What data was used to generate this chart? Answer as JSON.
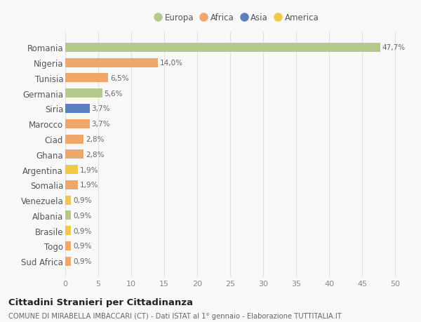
{
  "countries": [
    "Romania",
    "Nigeria",
    "Tunisia",
    "Germania",
    "Siria",
    "Marocco",
    "Ciad",
    "Ghana",
    "Argentina",
    "Somalia",
    "Venezuela",
    "Albania",
    "Brasile",
    "Togo",
    "Sud Africa"
  ],
  "values": [
    47.7,
    14.0,
    6.5,
    5.6,
    3.7,
    3.7,
    2.8,
    2.8,
    1.9,
    1.9,
    0.9,
    0.9,
    0.9,
    0.9,
    0.9
  ],
  "labels": [
    "47,7%",
    "14,0%",
    "6,5%",
    "5,6%",
    "3,7%",
    "3,7%",
    "2,8%",
    "2,8%",
    "1,9%",
    "1,9%",
    "0,9%",
    "0,9%",
    "0,9%",
    "0,9%",
    "0,9%"
  ],
  "continents": [
    "Europa",
    "Africa",
    "Africa",
    "Europa",
    "Asia",
    "Africa",
    "Africa",
    "Africa",
    "America",
    "Africa",
    "America",
    "Europa",
    "America",
    "Africa",
    "Africa"
  ],
  "continent_colors": {
    "Europa": "#b5c98e",
    "Africa": "#f0a86a",
    "Asia": "#5b7fbe",
    "America": "#f0c84a"
  },
  "legend_order": [
    "Europa",
    "Africa",
    "Asia",
    "America"
  ],
  "title": "Cittadini Stranieri per Cittadinanza",
  "subtitle": "COMUNE DI MIRABELLA IMBACCARI (CT) - Dati ISTAT al 1° gennaio - Elaborazione TUTTITALIA.IT",
  "xlim": [
    0,
    52
  ],
  "xticks": [
    0,
    5,
    10,
    15,
    20,
    25,
    30,
    35,
    40,
    45,
    50
  ],
  "bg_color": "#f9f9f9",
  "grid_color": "#e0e0e0",
  "bar_height": 0.6
}
